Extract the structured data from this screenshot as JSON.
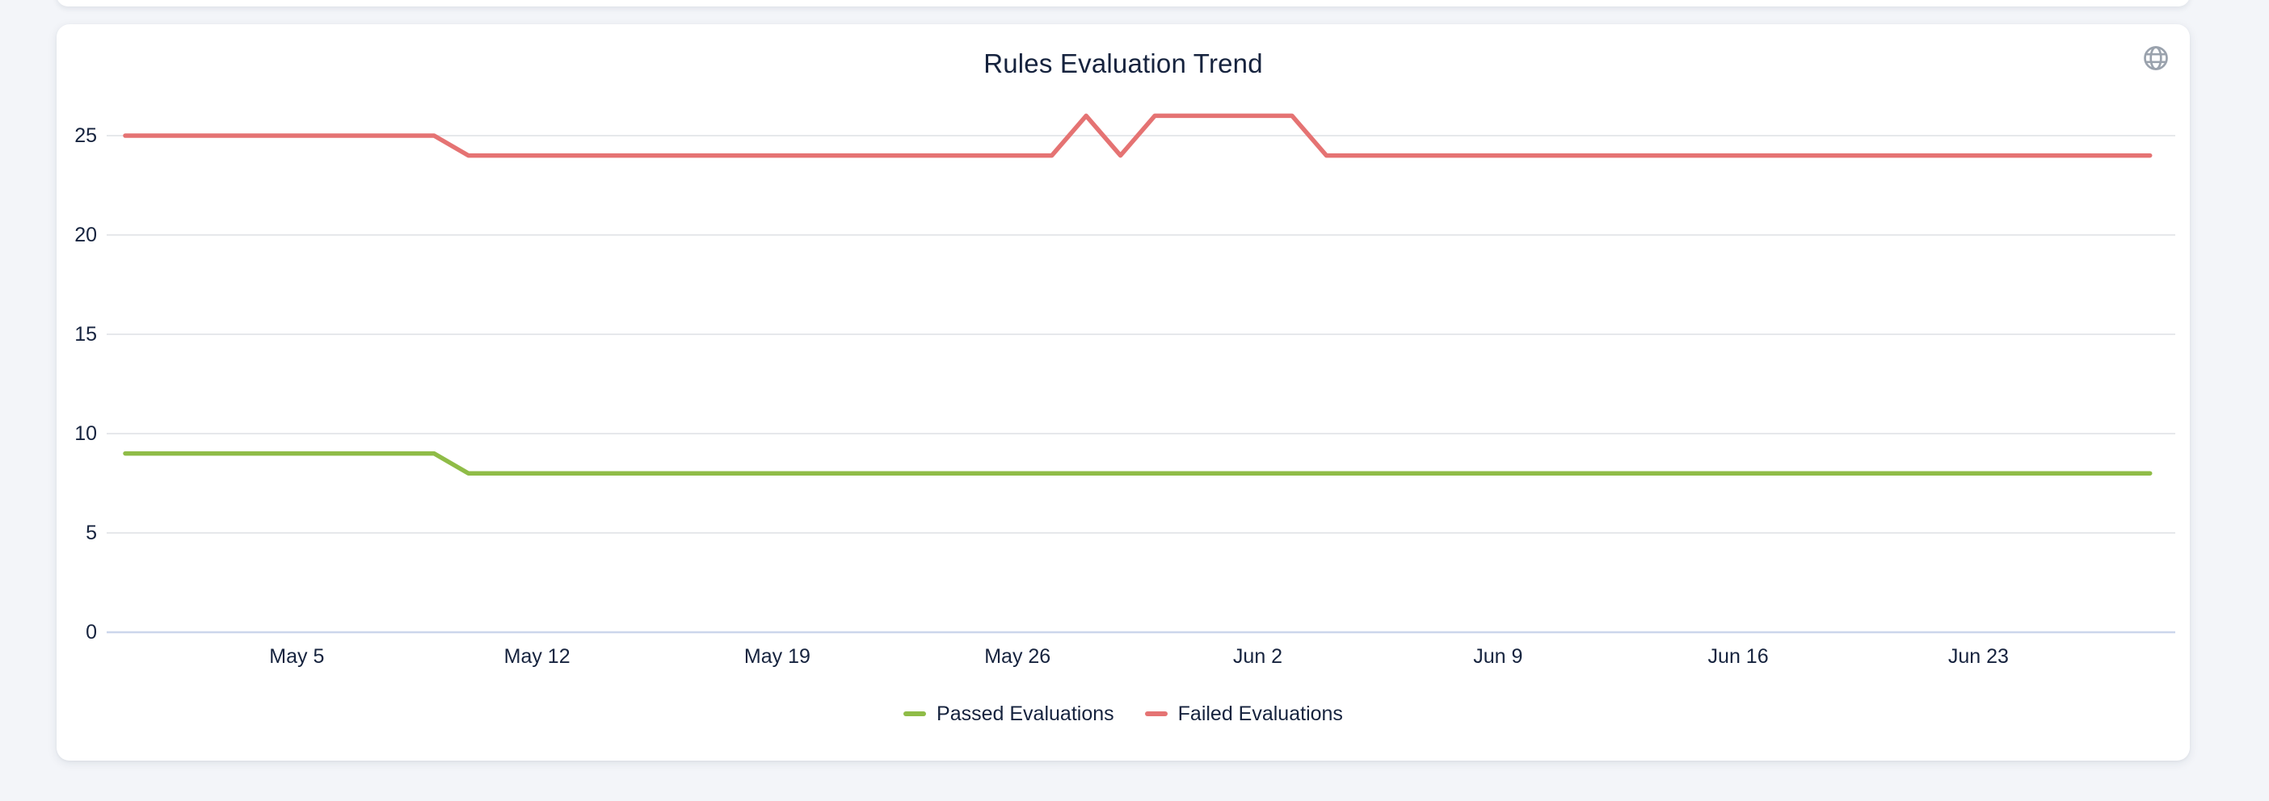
{
  "page": {
    "background": "#f3f5f9"
  },
  "card": {
    "background": "#ffffff"
  },
  "header": {
    "icon": "globe-icon"
  },
  "chart_data": {
    "type": "line",
    "title": "Rules Evaluation Trend",
    "xlabel": "",
    "ylabel": "",
    "grid": true,
    "legend_position": "bottom",
    "ylim": [
      0,
      27
    ],
    "yticks": [
      0,
      5,
      10,
      15,
      20,
      25
    ],
    "xticks": [
      "May 5",
      "May 12",
      "May 19",
      "May 26",
      "Jun 2",
      "Jun 9",
      "Jun 16",
      "Jun 23"
    ],
    "x": [
      "Apr 30",
      "May 1",
      "May 2",
      "May 3",
      "May 4",
      "May 5",
      "May 6",
      "May 7",
      "May 8",
      "May 9",
      "May 10",
      "May 11",
      "May 12",
      "May 13",
      "May 14",
      "May 15",
      "May 16",
      "May 17",
      "May 18",
      "May 19",
      "May 20",
      "May 21",
      "May 22",
      "May 23",
      "May 24",
      "May 25",
      "May 26",
      "May 27",
      "May 28",
      "May 29",
      "May 30",
      "May 31",
      "Jun 1",
      "Jun 2",
      "Jun 3",
      "Jun 4",
      "Jun 5",
      "Jun 6",
      "Jun 7",
      "Jun 8",
      "Jun 9",
      "Jun 10",
      "Jun 11",
      "Jun 12",
      "Jun 13",
      "Jun 14",
      "Jun 15",
      "Jun 16",
      "Jun 17",
      "Jun 18",
      "Jun 19",
      "Jun 20",
      "Jun 21",
      "Jun 22",
      "Jun 23",
      "Jun 24",
      "Jun 25",
      "Jun 26",
      "Jun 27",
      "Jun 28"
    ],
    "series": [
      {
        "name": "Passed Evaluations",
        "color": "#8fbc47",
        "values": [
          9,
          9,
          9,
          9,
          9,
          9,
          9,
          9,
          9,
          9,
          8,
          8,
          8,
          8,
          8,
          8,
          8,
          8,
          8,
          8,
          8,
          8,
          8,
          8,
          8,
          8,
          8,
          8,
          8,
          8,
          8,
          8,
          8,
          8,
          8,
          8,
          8,
          8,
          8,
          8,
          8,
          8,
          8,
          8,
          8,
          8,
          8,
          8,
          8,
          8,
          8,
          8,
          8,
          8,
          8,
          8,
          8,
          8,
          8,
          8
        ]
      },
      {
        "name": "Failed Evaluations",
        "color": "#e57373",
        "values": [
          25,
          25,
          25,
          25,
          25,
          25,
          25,
          25,
          25,
          25,
          24,
          24,
          24,
          24,
          24,
          24,
          24,
          24,
          24,
          24,
          24,
          24,
          24,
          24,
          24,
          24,
          24,
          24,
          26,
          24,
          26,
          26,
          26,
          26,
          26,
          24,
          24,
          24,
          24,
          24,
          24,
          24,
          24,
          24,
          24,
          24,
          24,
          24,
          24,
          24,
          24,
          24,
          24,
          24,
          24,
          24,
          24,
          24,
          24,
          24
        ]
      }
    ],
    "colors": {
      "grid": "#e6e8eb",
      "axis_line": "#ccd6eb",
      "text": "#16233e",
      "icon": "#9aa2ad"
    }
  }
}
